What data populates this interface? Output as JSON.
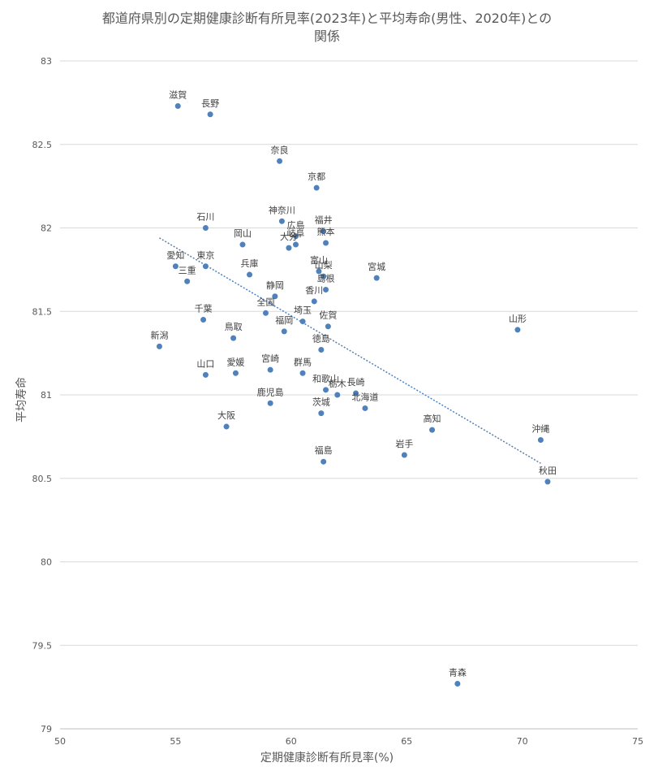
{
  "chart_data": {
    "type": "scatter",
    "title_line1": "都道府県別の定期健康診断有所見率(2023年)と平均寿命(男性、2020年)との",
    "title_line2": "関係",
    "xlabel": "定期健康診断有所見率(%)",
    "ylabel": "平均寿命",
    "xlim": [
      50,
      75
    ],
    "ylim": [
      79,
      83
    ],
    "xticks": [
      "50",
      "55",
      "60",
      "65",
      "70",
      "75"
    ],
    "yticks": [
      "79",
      "79.5",
      "80",
      "80.5",
      "81",
      "81.5",
      "82",
      "82.5",
      "83"
    ],
    "grid": "horizontal",
    "trendline": {
      "type": "linear",
      "x": [
        54.3,
        70.8
      ],
      "y": [
        81.94,
        80.59
      ]
    },
    "points": [
      {
        "label": "滋賀",
        "x": 55.1,
        "y": 82.73
      },
      {
        "label": "長野",
        "x": 56.5,
        "y": 82.68
      },
      {
        "label": "奈良",
        "x": 59.5,
        "y": 82.4
      },
      {
        "label": "京都",
        "x": 61.1,
        "y": 82.24
      },
      {
        "label": "石川",
        "x": 56.3,
        "y": 82.0
      },
      {
        "label": "神奈川",
        "x": 59.6,
        "y": 82.04
      },
      {
        "label": "広島",
        "x": 60.2,
        "y": 81.95
      },
      {
        "label": "福井",
        "x": 61.4,
        "y": 81.98
      },
      {
        "label": "岡山",
        "x": 57.9,
        "y": 81.9
      },
      {
        "label": "大分",
        "x": 59.9,
        "y": 81.88
      },
      {
        "label": "岐阜",
        "x": 60.2,
        "y": 81.9
      },
      {
        "label": "熊本",
        "x": 61.5,
        "y": 81.91
      },
      {
        "label": "愛知",
        "x": 55.0,
        "y": 81.77
      },
      {
        "label": "東京",
        "x": 56.3,
        "y": 81.77
      },
      {
        "label": "三重",
        "x": 55.5,
        "y": 81.68
      },
      {
        "label": "兵庫",
        "x": 58.2,
        "y": 81.72
      },
      {
        "label": "富山",
        "x": 61.2,
        "y": 81.74
      },
      {
        "label": "山梨",
        "x": 61.4,
        "y": 81.71
      },
      {
        "label": "島根",
        "x": 61.5,
        "y": 81.63
      },
      {
        "label": "宮城",
        "x": 63.7,
        "y": 81.7
      },
      {
        "label": "静岡",
        "x": 59.3,
        "y": 81.59
      },
      {
        "label": "香川",
        "x": 61.0,
        "y": 81.56
      },
      {
        "label": "全国",
        "x": 58.9,
        "y": 81.49
      },
      {
        "label": "埼玉",
        "x": 60.5,
        "y": 81.44
      },
      {
        "label": "千葉",
        "x": 56.2,
        "y": 81.45
      },
      {
        "label": "福岡",
        "x": 59.7,
        "y": 81.38
      },
      {
        "label": "佐賀",
        "x": 61.6,
        "y": 81.41
      },
      {
        "label": "山形",
        "x": 69.8,
        "y": 81.39
      },
      {
        "label": "新潟",
        "x": 54.3,
        "y": 81.29
      },
      {
        "label": "鳥取",
        "x": 57.5,
        "y": 81.34
      },
      {
        "label": "徳島",
        "x": 61.3,
        "y": 81.27
      },
      {
        "label": "山口",
        "x": 56.3,
        "y": 81.12
      },
      {
        "label": "愛媛",
        "x": 57.6,
        "y": 81.13
      },
      {
        "label": "宮崎",
        "x": 59.1,
        "y": 81.15
      },
      {
        "label": "群馬",
        "x": 60.5,
        "y": 81.13
      },
      {
        "label": "和歌山",
        "x": 61.5,
        "y": 81.03
      },
      {
        "label": "栃木",
        "x": 62.0,
        "y": 81.0
      },
      {
        "label": "長崎",
        "x": 62.8,
        "y": 81.01
      },
      {
        "label": "北海道",
        "x": 63.2,
        "y": 80.92
      },
      {
        "label": "鹿児島",
        "x": 59.1,
        "y": 80.95
      },
      {
        "label": "茨城",
        "x": 61.3,
        "y": 80.89
      },
      {
        "label": "大阪",
        "x": 57.2,
        "y": 80.81
      },
      {
        "label": "高知",
        "x": 66.1,
        "y": 80.79
      },
      {
        "label": "岩手",
        "x": 64.9,
        "y": 80.64
      },
      {
        "label": "沖縄",
        "x": 70.8,
        "y": 80.73
      },
      {
        "label": "福島",
        "x": 61.4,
        "y": 80.6
      },
      {
        "label": "秋田",
        "x": 71.1,
        "y": 80.48
      },
      {
        "label": "青森",
        "x": 67.2,
        "y": 79.27
      }
    ],
    "colors": {
      "point": "#4f81bd",
      "trendline": "#4f81bd",
      "grid": "#d9d9d9",
      "text": "#595959",
      "label": "#404040"
    }
  }
}
